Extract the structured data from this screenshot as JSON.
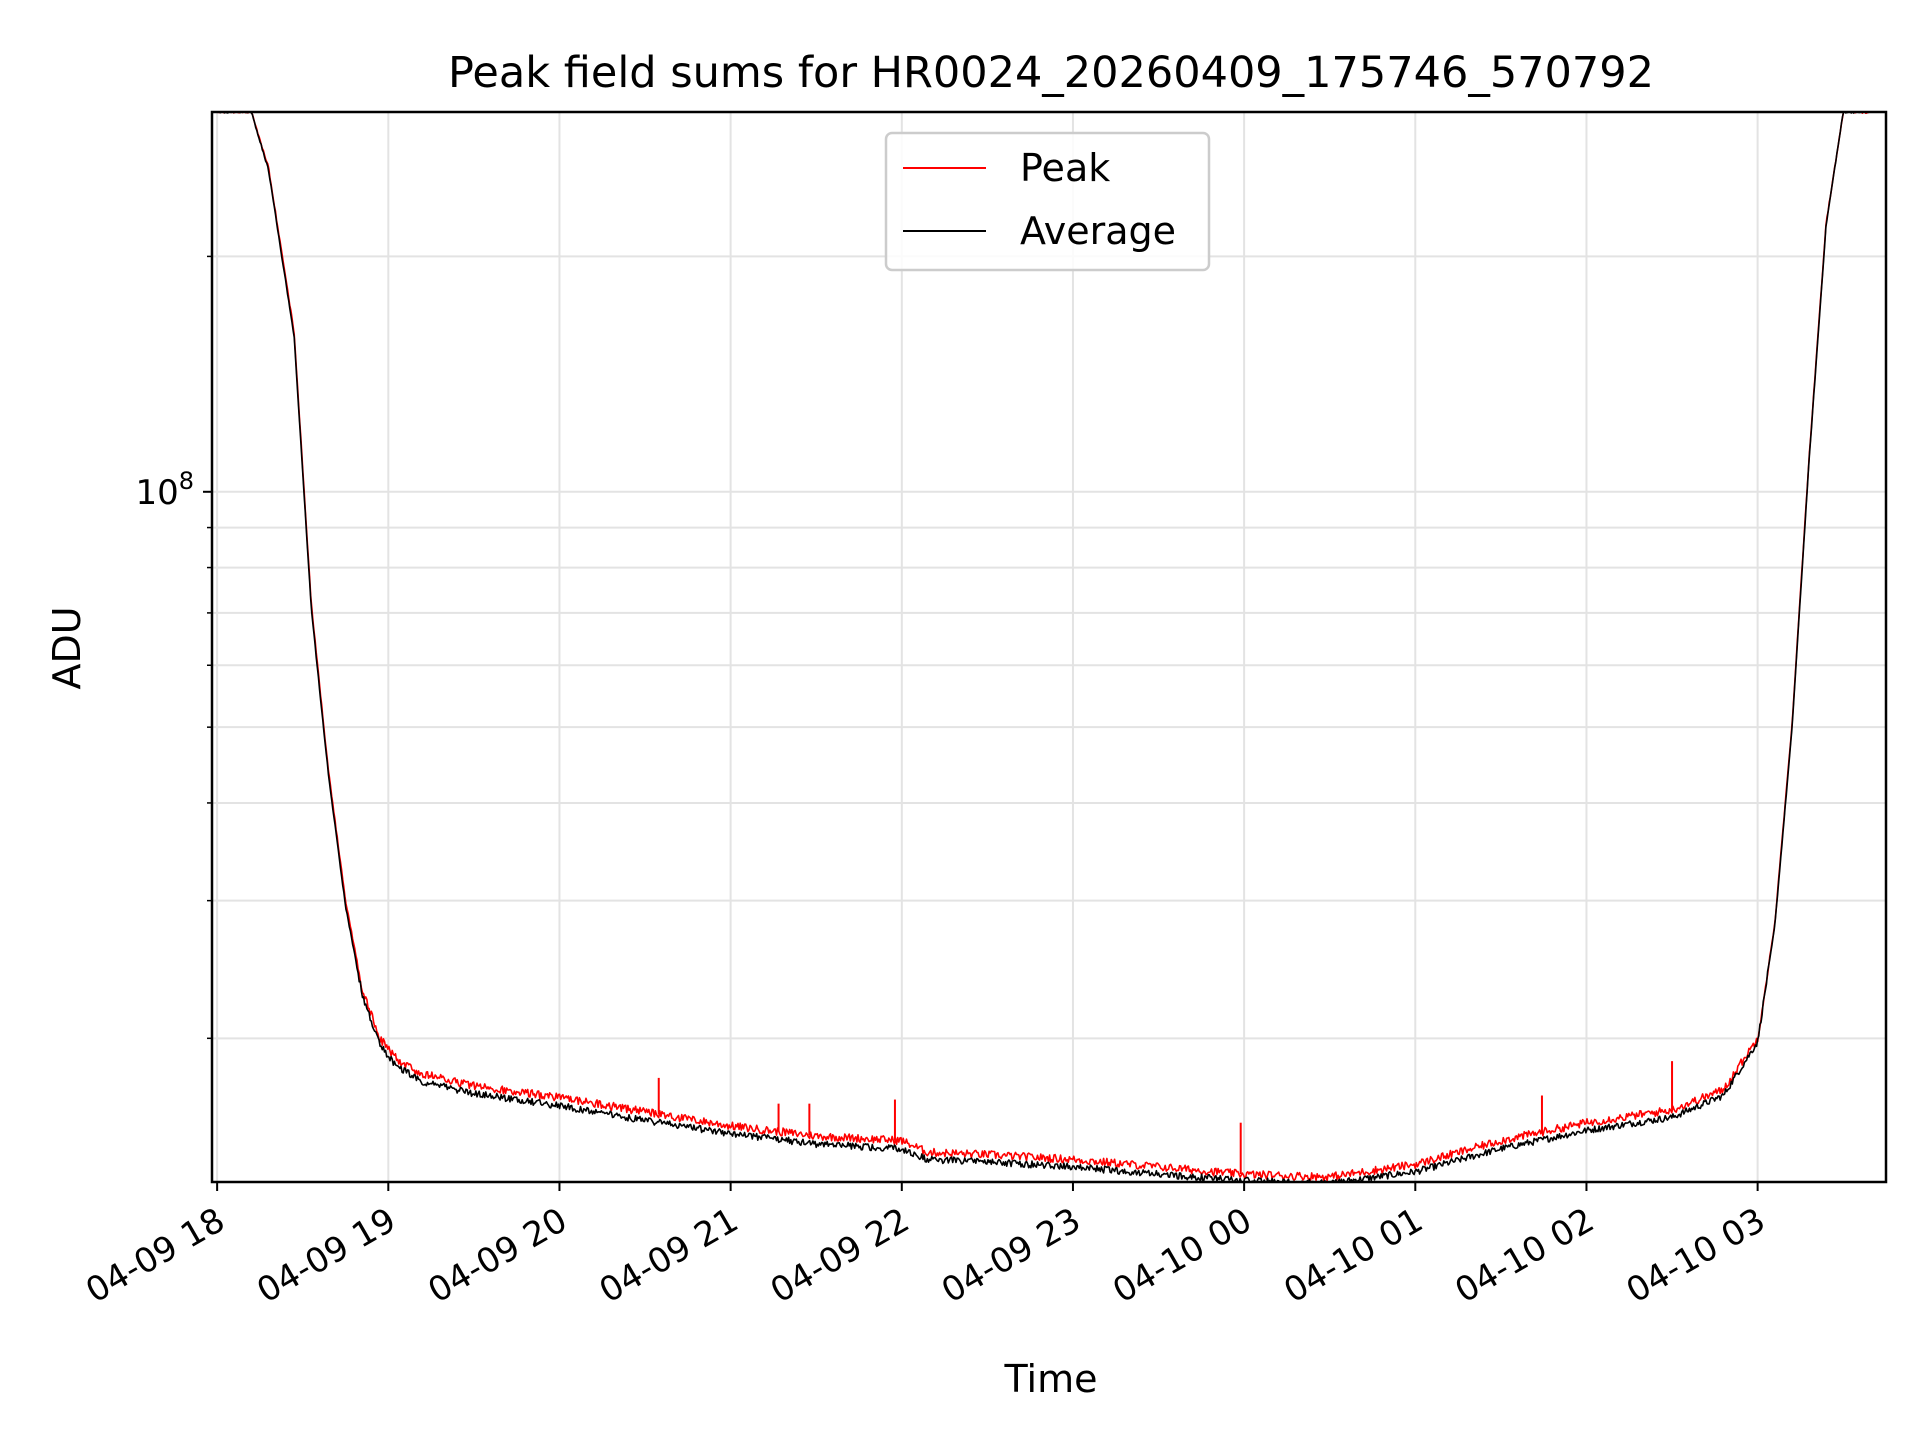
{
  "chart_data": {
    "type": "line",
    "title": "Peak field sums for HR0024_20260409_175746_570792",
    "xlabel": "Time",
    "ylabel": "ADU",
    "yscale": "log",
    "xlim_hours": [
      -0.03,
      9.75
    ],
    "ylim": [
      13100000,
      306000000
    ],
    "x_tick_hours": [
      0,
      1,
      2,
      3,
      4,
      5,
      6,
      7,
      8,
      9
    ],
    "x_tick_labels": [
      "04-09 18",
      "04-09 19",
      "04-09 20",
      "04-09 21",
      "04-09 22",
      "04-09 23",
      "04-10 00",
      "04-10 01",
      "04-10 02",
      "04-10 03"
    ],
    "y_major_ticks": [
      {
        "value": 100000000,
        "base": "10",
        "exponent": "8"
      }
    ],
    "y_minor_ticks": [
      20000000,
      30000000,
      40000000,
      50000000,
      60000000,
      70000000,
      80000000,
      90000000,
      200000000
    ],
    "grid": true,
    "legend": {
      "position": "top-center"
    },
    "series": [
      {
        "name": "Peak",
        "color": "#ff0000",
        "key_hours": [
          0,
          0.2,
          0.3,
          0.45,
          0.55,
          0.65,
          0.75,
          0.85,
          0.95,
          1.05,
          1.2,
          1.5,
          2.0,
          2.5,
          3.0,
          3.5,
          4.0,
          4.15,
          4.5,
          5.0,
          5.5,
          6.0,
          6.5,
          7.0,
          7.5,
          8.0,
          8.5,
          8.8,
          9.0,
          9.1,
          9.2,
          9.3,
          9.4,
          9.5,
          9.75
        ],
        "key_values": [
          306000000,
          306000000,
          260000000,
          160000000,
          72000000,
          44000000,
          30000000,
          23000000,
          20000000,
          18800000,
          18000000,
          17400000,
          16800000,
          16100000,
          15450000,
          15000000,
          14800000,
          14300000,
          14200000,
          14000000,
          13700000,
          13400000,
          13300000,
          13800000,
          14800000,
          15600000,
          16200000,
          17200000,
          20000000,
          28000000,
          50000000,
          110000000,
          220000000,
          306000000,
          306000000
        ],
        "spikes": [
          {
            "hour": 2.58,
            "value": 17800000
          },
          {
            "hour": 3.28,
            "value": 16500000
          },
          {
            "hour": 3.46,
            "value": 16500000
          },
          {
            "hour": 3.96,
            "value": 16700000
          },
          {
            "hour": 5.98,
            "value": 15600000
          },
          {
            "hour": 7.74,
            "value": 16900000
          },
          {
            "hour": 8.5,
            "value": 18700000
          }
        ],
        "noise_fraction": 0.012
      },
      {
        "name": "Average",
        "color": "#000000",
        "key_hours": [
          0,
          0.2,
          0.3,
          0.45,
          0.55,
          0.65,
          0.75,
          0.85,
          0.95,
          1.05,
          1.2,
          1.5,
          2.0,
          2.5,
          3.0,
          3.5,
          4.0,
          4.15,
          4.5,
          5.0,
          5.5,
          6.0,
          6.5,
          7.0,
          7.5,
          8.0,
          8.5,
          8.8,
          9.0,
          9.1,
          9.2,
          9.3,
          9.4,
          9.5,
          9.75
        ],
        "key_values": [
          306000000,
          306000000,
          258000000,
          158000000,
          71000000,
          43500000,
          29500000,
          22600000,
          19600000,
          18400000,
          17600000,
          17000000,
          16400000,
          15700000,
          15100000,
          14650000,
          14450000,
          14000000,
          13900000,
          13700000,
          13400000,
          13150000,
          13050000,
          13500000,
          14450000,
          15250000,
          15850000,
          16900000,
          19800000,
          27800000,
          49500000,
          109000000,
          219000000,
          306000000,
          306000000
        ],
        "noise_fraction": 0.01
      }
    ]
  }
}
